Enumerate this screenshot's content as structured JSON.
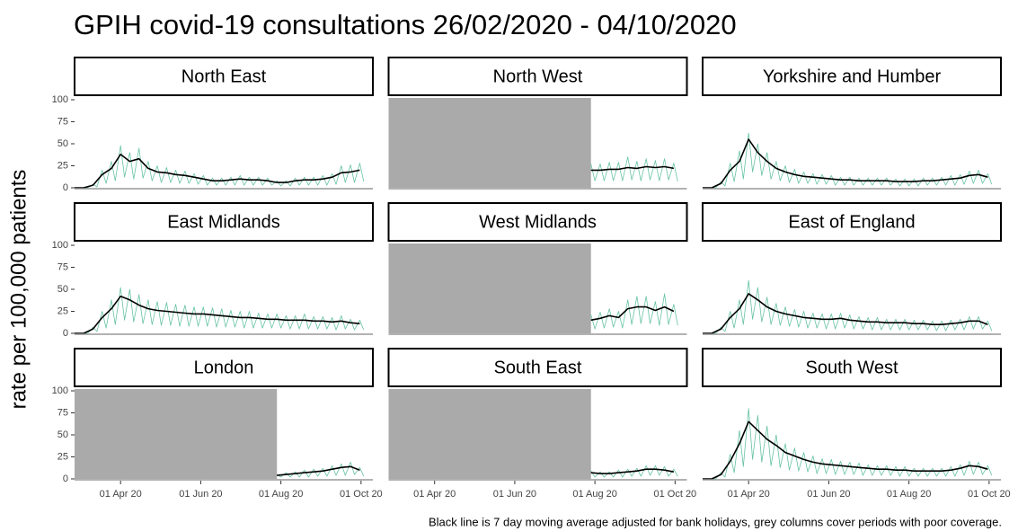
{
  "chart_data": {
    "type": "line",
    "title": "GPIH covid-19 consultations 26/02/2020 - 04/10/2020",
    "y_label": "rate per 100,000 patients",
    "note": "Black line is 7 day moving average adjusted for bank holidays, grey columns cover periods with poor coverage.",
    "xlim": [
      "2020-02-26",
      "2020-10-10"
    ],
    "xticks": [
      {
        "value": "2020-04-01",
        "label": "01 Apr 20"
      },
      {
        "value": "2020-06-01",
        "label": "01 Jun 20"
      },
      {
        "value": "2020-08-01",
        "label": "01 Aug 20"
      },
      {
        "value": "2020-10-01",
        "label": "01 Oct 20"
      }
    ],
    "ylim": [
      0,
      100
    ],
    "yticks": [
      0,
      25,
      50,
      75,
      100
    ],
    "x": [
      "2020-02-26",
      "2020-03-04",
      "2020-03-11",
      "2020-03-18",
      "2020-03-25",
      "2020-04-01",
      "2020-04-08",
      "2020-04-15",
      "2020-04-22",
      "2020-04-29",
      "2020-05-06",
      "2020-05-13",
      "2020-05-20",
      "2020-05-27",
      "2020-06-03",
      "2020-06-10",
      "2020-06-17",
      "2020-06-24",
      "2020-07-01",
      "2020-07-08",
      "2020-07-15",
      "2020-07-22",
      "2020-07-29",
      "2020-08-05",
      "2020-08-12",
      "2020-08-19",
      "2020-08-26",
      "2020-09-02",
      "2020-09-09",
      "2020-09-16",
      "2020-09-23",
      "2020-09-30"
    ],
    "x_daily": [
      "2020-02-26",
      "2020-02-29",
      "2020-03-04",
      "2020-03-07",
      "2020-03-11",
      "2020-03-14",
      "2020-03-18",
      "2020-03-21",
      "2020-03-25",
      "2020-03-28",
      "2020-04-01",
      "2020-04-04",
      "2020-04-08",
      "2020-04-11",
      "2020-04-15",
      "2020-04-18",
      "2020-04-22",
      "2020-04-25",
      "2020-04-29",
      "2020-05-02",
      "2020-05-06",
      "2020-05-09",
      "2020-05-13",
      "2020-05-16",
      "2020-05-20",
      "2020-05-23",
      "2020-05-27",
      "2020-05-30",
      "2020-06-03",
      "2020-06-06",
      "2020-06-10",
      "2020-06-13",
      "2020-06-17",
      "2020-06-20",
      "2020-06-24",
      "2020-06-27",
      "2020-07-01",
      "2020-07-04",
      "2020-07-08",
      "2020-07-11",
      "2020-07-15",
      "2020-07-18",
      "2020-07-22",
      "2020-07-25",
      "2020-07-29",
      "2020-08-01",
      "2020-08-05",
      "2020-08-08",
      "2020-08-12",
      "2020-08-15",
      "2020-08-19",
      "2020-08-22",
      "2020-08-26",
      "2020-08-29",
      "2020-09-02",
      "2020-09-05",
      "2020-09-09",
      "2020-09-12",
      "2020-09-16",
      "2020-09-19",
      "2020-09-23",
      "2020-09-26",
      "2020-09-30",
      "2020-10-03"
    ],
    "panels": [
      {
        "name": "North East",
        "daily": {
          "color": "#66c2a5",
          "values": [
            0,
            0,
            0,
            0,
            4,
            1,
            20,
            5,
            30,
            8,
            48,
            12,
            40,
            10,
            45,
            11,
            30,
            8,
            25,
            6,
            23,
            6,
            20,
            5,
            19,
            5,
            16,
            4,
            14,
            3,
            11,
            3,
            11,
            3,
            12,
            3,
            14,
            3,
            12,
            3,
            12,
            3,
            11,
            3,
            8,
            2,
            8,
            2,
            11,
            3,
            12,
            3,
            12,
            3,
            14,
            3,
            16,
            4,
            25,
            6,
            26,
            6,
            28,
            7
          ]
        },
        "average": {
          "color": "#000000",
          "values": [
            0,
            0,
            3,
            15,
            22,
            38,
            30,
            33,
            22,
            18,
            17,
            15,
            14,
            12,
            10,
            8,
            8,
            9,
            10,
            9,
            9,
            8,
            6,
            6,
            8,
            9,
            9,
            10,
            12,
            17,
            18,
            20
          ]
        }
      },
      {
        "name": "North West",
        "poor_coverage": [
          "2020-02-26",
          "2020-07-29"
        ],
        "daily": {
          "color": "#66c2a5",
          "values": [
            null,
            null,
            null,
            null,
            null,
            null,
            null,
            null,
            null,
            null,
            null,
            null,
            null,
            null,
            null,
            null,
            null,
            null,
            null,
            null,
            null,
            null,
            null,
            null,
            null,
            null,
            null,
            null,
            null,
            null,
            null,
            null,
            null,
            null,
            null,
            null,
            null,
            null,
            null,
            null,
            null,
            null,
            null,
            null,
            27,
            8,
            27,
            8,
            29,
            8,
            29,
            8,
            35,
            9,
            30,
            8,
            33,
            9,
            31,
            8,
            33,
            9,
            28,
            7
          ]
        },
        "average": {
          "color": "#000000",
          "values": [
            null,
            null,
            null,
            null,
            null,
            null,
            null,
            null,
            null,
            null,
            null,
            null,
            null,
            null,
            null,
            null,
            null,
            null,
            null,
            null,
            null,
            null,
            20,
            20,
            21,
            21,
            23,
            22,
            24,
            23,
            24,
            22
          ]
        }
      },
      {
        "name": "Yorkshire and Humber",
        "daily": {
          "color": "#66c2a5",
          "values": [
            0,
            0,
            0,
            0,
            7,
            2,
            28,
            7,
            42,
            10,
            62,
            18,
            50,
            14,
            40,
            10,
            30,
            8,
            25,
            6,
            21,
            5,
            18,
            5,
            16,
            4,
            15,
            4,
            14,
            3,
            12,
            3,
            12,
            3,
            11,
            3,
            11,
            3,
            11,
            3,
            11,
            3,
            10,
            2,
            10,
            2,
            10,
            2,
            11,
            3,
            11,
            3,
            12,
            3,
            14,
            3,
            15,
            4,
            19,
            5,
            20,
            5,
            16,
            4
          ]
        },
        "average": {
          "color": "#000000",
          "values": [
            0,
            0,
            5,
            20,
            30,
            55,
            40,
            30,
            22,
            18,
            15,
            13,
            12,
            11,
            10,
            9,
            9,
            8,
            8,
            8,
            8,
            7,
            7,
            7,
            8,
            8,
            9,
            10,
            11,
            14,
            15,
            12
          ]
        }
      },
      {
        "name": "East Midlands",
        "daily": {
          "color": "#66c2a5",
          "values": [
            0,
            0,
            0,
            0,
            7,
            2,
            25,
            6,
            38,
            10,
            52,
            15,
            50,
            13,
            44,
            11,
            38,
            10,
            36,
            9,
            35,
            9,
            33,
            8,
            32,
            8,
            30,
            8,
            30,
            8,
            29,
            7,
            28,
            7,
            26,
            7,
            25,
            6,
            25,
            6,
            23,
            6,
            22,
            6,
            22,
            6,
            20,
            5,
            20,
            5,
            22,
            5,
            19,
            5,
            19,
            5,
            18,
            4,
            20,
            5,
            16,
            4,
            15,
            4
          ]
        },
        "average": {
          "color": "#000000",
          "values": [
            0,
            0,
            5,
            18,
            28,
            42,
            38,
            32,
            28,
            26,
            25,
            24,
            23,
            22,
            22,
            21,
            20,
            19,
            18,
            18,
            17,
            16,
            16,
            15,
            15,
            15,
            14,
            14,
            13,
            14,
            12,
            11
          ]
        }
      },
      {
        "name": "West Midlands",
        "poor_coverage": [
          "2020-02-26",
          "2020-07-29"
        ],
        "daily": {
          "color": "#66c2a5",
          "values": [
            null,
            null,
            null,
            null,
            null,
            null,
            null,
            null,
            null,
            null,
            null,
            null,
            null,
            null,
            null,
            null,
            null,
            null,
            null,
            null,
            null,
            null,
            null,
            null,
            null,
            null,
            null,
            null,
            null,
            null,
            null,
            null,
            null,
            null,
            null,
            null,
            null,
            null,
            null,
            null,
            null,
            null,
            null,
            null,
            21,
            5,
            24,
            6,
            28,
            7,
            25,
            6,
            38,
            10,
            42,
            11,
            42,
            11,
            36,
            9,
            45,
            10,
            33,
            9
          ]
        },
        "average": {
          "color": "#000000",
          "values": [
            null,
            null,
            null,
            null,
            null,
            null,
            null,
            null,
            null,
            null,
            null,
            null,
            null,
            null,
            null,
            null,
            null,
            null,
            null,
            null,
            null,
            null,
            15,
            17,
            20,
            18,
            28,
            30,
            30,
            26,
            30,
            25
          ]
        }
      },
      {
        "name": "East of England",
        "daily": {
          "color": "#66c2a5",
          "values": [
            0,
            0,
            0,
            0,
            7,
            2,
            25,
            6,
            38,
            10,
            60,
            16,
            52,
            13,
            41,
            10,
            34,
            9,
            30,
            8,
            27,
            7,
            25,
            6,
            23,
            6,
            22,
            5,
            22,
            5,
            23,
            6,
            21,
            5,
            19,
            5,
            18,
            4,
            18,
            4,
            16,
            4,
            16,
            4,
            16,
            4,
            15,
            4,
            15,
            4,
            14,
            3,
            14,
            3,
            15,
            4,
            16,
            4,
            19,
            5,
            19,
            5,
            14,
            3
          ]
        },
        "average": {
          "color": "#000000",
          "values": [
            0,
            0,
            5,
            18,
            28,
            45,
            38,
            30,
            25,
            22,
            20,
            18,
            17,
            16,
            16,
            17,
            15,
            14,
            13,
            13,
            12,
            12,
            12,
            11,
            11,
            10,
            10,
            11,
            12,
            14,
            14,
            10
          ]
        }
      },
      {
        "name": "London",
        "poor_coverage": [
          "2020-02-26",
          "2020-07-29"
        ],
        "daily": {
          "color": "#66c2a5",
          "values": [
            null,
            null,
            null,
            null,
            null,
            null,
            null,
            null,
            null,
            null,
            null,
            null,
            null,
            null,
            null,
            null,
            null,
            null,
            null,
            null,
            null,
            null,
            null,
            null,
            null,
            null,
            null,
            null,
            null,
            null,
            null,
            null,
            null,
            null,
            null,
            null,
            null,
            null,
            null,
            null,
            null,
            null,
            null,
            null,
            5,
            2,
            7,
            2,
            8,
            2,
            10,
            2,
            11,
            3,
            12,
            3,
            15,
            4,
            17,
            4,
            19,
            5,
            13,
            3
          ]
        },
        "average": {
          "color": "#000000",
          "values": [
            null,
            null,
            null,
            null,
            null,
            null,
            null,
            null,
            null,
            null,
            null,
            null,
            null,
            null,
            null,
            null,
            null,
            null,
            null,
            null,
            null,
            null,
            4,
            5,
            6,
            7,
            8,
            9,
            11,
            13,
            14,
            10
          ]
        }
      },
      {
        "name": "South East",
        "poor_coverage": [
          "2020-02-26",
          "2020-07-29"
        ],
        "daily": {
          "color": "#66c2a5",
          "values": [
            null,
            null,
            null,
            null,
            null,
            null,
            null,
            null,
            null,
            null,
            null,
            null,
            null,
            null,
            null,
            null,
            null,
            null,
            null,
            null,
            null,
            null,
            null,
            null,
            null,
            null,
            null,
            null,
            null,
            null,
            null,
            null,
            null,
            null,
            null,
            null,
            null,
            null,
            null,
            null,
            null,
            null,
            null,
            null,
            9,
            2,
            8,
            2,
            8,
            2,
            10,
            2,
            11,
            3,
            12,
            3,
            15,
            4,
            15,
            4,
            14,
            3,
            11,
            3
          ]
        },
        "average": {
          "color": "#000000",
          "values": [
            null,
            null,
            null,
            null,
            null,
            null,
            null,
            null,
            null,
            null,
            null,
            null,
            null,
            null,
            null,
            null,
            null,
            null,
            null,
            null,
            null,
            null,
            7,
            6,
            6,
            7,
            8,
            9,
            11,
            11,
            10,
            8
          ]
        }
      },
      {
        "name": "South West",
        "daily": {
          "color": "#66c2a5",
          "values": [
            0,
            0,
            0,
            0,
            7,
            2,
            28,
            7,
            55,
            14,
            80,
            22,
            72,
            19,
            60,
            15,
            50,
            13,
            40,
            10,
            35,
            9,
            30,
            8,
            26,
            6,
            23,
            6,
            22,
            5,
            20,
            5,
            19,
            5,
            18,
            4,
            16,
            4,
            15,
            4,
            15,
            4,
            14,
            3,
            14,
            3,
            12,
            3,
            12,
            3,
            12,
            3,
            12,
            3,
            14,
            3,
            16,
            4,
            20,
            5,
            19,
            5,
            15,
            4
          ]
        },
        "average": {
          "color": "#000000",
          "values": [
            0,
            0,
            5,
            20,
            40,
            65,
            55,
            45,
            38,
            30,
            26,
            22,
            19,
            17,
            16,
            15,
            14,
            13,
            12,
            11,
            11,
            10,
            10,
            9,
            9,
            9,
            9,
            10,
            12,
            15,
            14,
            11
          ]
        }
      }
    ]
  }
}
